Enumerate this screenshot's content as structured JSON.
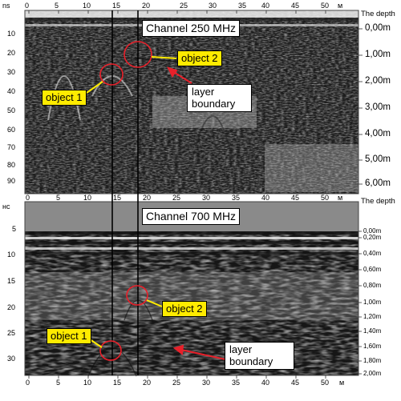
{
  "panel_top": {
    "channel_label": "Channel 250 MHz",
    "time_unit": "ns",
    "time_ticks": [
      "10",
      "20",
      "30",
      "40",
      "50",
      "60",
      "70",
      "80",
      "90"
    ],
    "distance_ticks": [
      "0",
      "5",
      "10",
      "15",
      "20",
      "25",
      "30",
      "35",
      "40",
      "45",
      "50"
    ],
    "distance_unit": "м",
    "depth_title": "The depth",
    "depth_ticks": [
      "0,00m",
      "1,00m",
      "2,00m",
      "3,00m",
      "4,00m",
      "5,00m",
      "6,00m"
    ],
    "annotations": {
      "object1": "object 1",
      "object2": "object 2",
      "layer_boundary": "layer boundary"
    }
  },
  "panel_bottom": {
    "channel_label": "Channel 700 MHz",
    "time_unit": "нс",
    "time_ticks": [
      "5",
      "10",
      "15",
      "20",
      "25",
      "30"
    ],
    "distance_ticks": [
      "0",
      "5",
      "10",
      "15",
      "20",
      "25",
      "30",
      "35",
      "40",
      "45",
      "50"
    ],
    "distance_unit": "м",
    "depth_title": "The depth",
    "depth_ticks": [
      "0,00m",
      "0,20m",
      "0,40m",
      "0,60m",
      "0,80m",
      "1,00m",
      "1,20m",
      "1,40m",
      "1,60m",
      "1,80m",
      "2,00m"
    ],
    "annotations": {
      "object1": "object 1",
      "object2": "object 2",
      "layer_boundary": "layer boundary"
    }
  },
  "colors": {
    "marker": "#e8202a",
    "label_fill": "#ffeb00",
    "header_band": "#8a8a8a"
  }
}
